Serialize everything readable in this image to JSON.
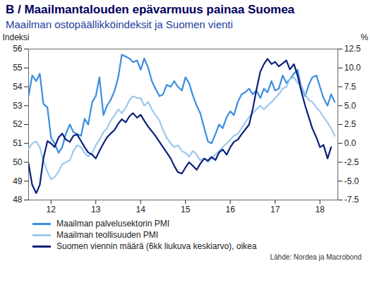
{
  "chart_data": {
    "type": "line",
    "title": "B / Maailmantalouden epävarmuus painaa Suomea",
    "subtitle": "Maailman ostopäällikköindeksit ja Suomen vienti",
    "ylabel": "Indeksi",
    "y2label": "%",
    "source": "Lähde: Nordea ja Macrobond",
    "legend": "bottom",
    "grid": false,
    "x": [
      2012.0,
      2012.08,
      2012.17,
      2012.25,
      2012.33,
      2012.42,
      2012.5,
      2012.58,
      2012.67,
      2012.75,
      2012.83,
      2012.92,
      2013.0,
      2013.08,
      2013.17,
      2013.25,
      2013.33,
      2013.42,
      2013.5,
      2013.58,
      2013.67,
      2013.75,
      2013.83,
      2013.92,
      2014.0,
      2014.08,
      2014.17,
      2014.25,
      2014.33,
      2014.42,
      2014.5,
      2014.58,
      2014.67,
      2014.75,
      2014.83,
      2014.92,
      2015.0,
      2015.08,
      2015.17,
      2015.25,
      2015.33,
      2015.42,
      2015.5,
      2015.58,
      2015.67,
      2015.75,
      2015.83,
      2015.92,
      2016.0,
      2016.08,
      2016.17,
      2016.25,
      2016.33,
      2016.42,
      2016.5,
      2016.58,
      2016.67,
      2016.75,
      2016.83,
      2016.92,
      2017.0,
      2017.08,
      2017.17,
      2017.25,
      2017.33,
      2017.42,
      2017.5,
      2017.58,
      2017.67,
      2017.75,
      2017.83,
      2017.92,
      2018.0,
      2018.08,
      2018.17,
      2018.25,
      2018.33,
      2018.42,
      2018.5,
      2018.58,
      2018.67,
      2018.75,
      2018.83
    ],
    "xlim": [
      2012,
      2018.9
    ],
    "xticks": [
      {
        "value": 2012.5,
        "label": "12"
      },
      {
        "value": 2013.5,
        "label": "13"
      },
      {
        "value": 2014.5,
        "label": "14"
      },
      {
        "value": 2015.5,
        "label": "15"
      },
      {
        "value": 2016.5,
        "label": "16"
      },
      {
        "value": 2017.5,
        "label": "17"
      },
      {
        "value": 2018.5,
        "label": "18"
      }
    ],
    "ylim": [
      48,
      56
    ],
    "yticks": [
      48,
      49,
      50,
      51,
      52,
      53,
      54,
      55,
      56
    ],
    "y2lim": [
      -7.5,
      12.5
    ],
    "y2ticks": [
      -7.5,
      {
        "value": -5,
        "label": "-5.0"
      },
      -2.5,
      {
        "value": 0,
        "label": "0.0"
      },
      2.5,
      {
        "value": 5,
        "label": "5.0"
      },
      7.5,
      {
        "value": 10,
        "label": "10.0"
      },
      12.5
    ],
    "series": [
      {
        "name": "Maailman palvelusektorin PMI",
        "color": "#3a8ee0",
        "values": [
          53.5,
          54.6,
          54.3,
          54.7,
          53.1,
          52.9,
          51.3,
          51.0,
          50.5,
          50.8,
          51.5,
          52.0,
          51.6,
          51.5,
          51.4,
          52.3,
          52.0,
          53.2,
          53.5,
          54.5,
          52.5,
          53.0,
          53.3,
          53.8,
          54.5,
          55.7,
          55.6,
          55.5,
          55.3,
          55.4,
          54.9,
          55.5,
          55.0,
          54.3,
          53.9,
          53.5,
          53.6,
          54.1,
          54.0,
          54.3,
          54.0,
          53.8,
          54.5,
          54.2,
          53.5,
          53.0,
          52.6,
          51.8,
          51.1,
          51.0,
          51.5,
          52.0,
          51.8,
          52.4,
          52.7,
          52.5,
          53.2,
          53.6,
          53.7,
          53.9,
          53.6,
          53.8,
          53.4,
          53.9,
          53.7,
          54.3,
          53.8,
          53.9,
          54.6,
          54.2,
          54.4,
          54.7,
          54.9,
          54.0,
          53.5,
          54.1,
          54.5,
          54.6,
          54.0,
          53.4,
          53.0,
          53.6,
          53.2
        ]
      },
      {
        "name": "Maailman teollisuuden PMI",
        "color": "#9dc9ef",
        "values": [
          50.7,
          51.0,
          51.1,
          50.8,
          50.1,
          49.5,
          49.1,
          49.2,
          49.5,
          49.9,
          50.0,
          50.1,
          50.6,
          50.9,
          50.8,
          50.5,
          50.3,
          50.5,
          50.9,
          51.2,
          51.6,
          51.8,
          52.2,
          52.5,
          52.8,
          52.6,
          52.9,
          53.3,
          53.5,
          53.4,
          53.4,
          53.0,
          53.2,
          52.8,
          52.5,
          52.2,
          51.7,
          51.3,
          51.0,
          50.8,
          50.9,
          50.6,
          50.5,
          50.3,
          50.6,
          50.4,
          50.1,
          50.2,
          50.0,
          50.2,
          50.4,
          50.6,
          50.8,
          51.0,
          51.2,
          51.4,
          51.5,
          51.8,
          52.1,
          52.4,
          52.6,
          52.8,
          53.0,
          52.8,
          53.0,
          53.2,
          53.4,
          53.6,
          53.9,
          54.0,
          54.4,
          54.5,
          54.2,
          54.1,
          53.6,
          53.3,
          53.2,
          52.9,
          52.7,
          52.4,
          52.1,
          51.8,
          51.4
        ]
      },
      {
        "name": "Suomen viennin määrä (6kk liukuva keskiarvo), oikea",
        "color": "#0a1f7a",
        "axis": "y2",
        "values": [
          -2.7,
          -5.5,
          -6.6,
          -5.5,
          -2.0,
          0.3,
          0.0,
          -0.5,
          0.8,
          1.3,
          0.5,
          0.2,
          1.0,
          1.2,
          0.3,
          -0.5,
          -1.2,
          -1.5,
          -2.0,
          -1.0,
          0.0,
          0.8,
          1.3,
          1.8,
          2.6,
          3.2,
          2.8,
          3.6,
          4.0,
          3.4,
          3.8,
          3.0,
          2.2,
          1.6,
          1.0,
          0.2,
          -0.5,
          -1.2,
          -2.0,
          -3.0,
          -3.8,
          -4.0,
          -3.2,
          -2.5,
          -3.0,
          -3.5,
          -2.7,
          -2.0,
          -2.3,
          -1.8,
          -2.2,
          -1.2,
          -0.8,
          -1.5,
          -0.5,
          0.2,
          0.5,
          1.2,
          1.8,
          2.5,
          4.5,
          7.0,
          9.5,
          10.5,
          11.2,
          10.5,
          10.8,
          10.2,
          10.6,
          11.0,
          9.8,
          10.5,
          9.0,
          7.0,
          5.0,
          3.5,
          2.0,
          0.8,
          -0.5,
          -0.2,
          -2.0,
          -0.5,
          null
        ]
      }
    ]
  }
}
